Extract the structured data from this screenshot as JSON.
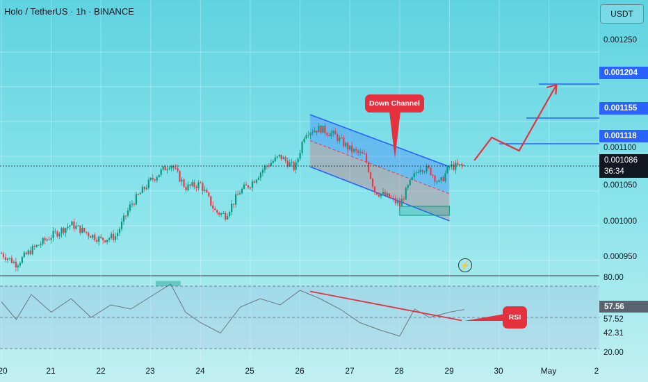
{
  "header": {
    "title": "Holo / TetherUS · 1h · BINANCE"
  },
  "currency": "USDT",
  "price_axis": {
    "labels": [
      "0.001250",
      "0.001100",
      "0.001050",
      "0.001000",
      "0.000950"
    ]
  },
  "levels": [
    "0.001204",
    "0.001155",
    "0.001118"
  ],
  "current": {
    "price": "0.001086",
    "countdown": "36:34"
  },
  "annotations": {
    "channel": "Down Channel",
    "rsi": "RSI"
  },
  "rsi_axis": {
    "labels": [
      "80.00",
      "57.52",
      "42.31",
      "20.00"
    ],
    "current": "57.56"
  },
  "colors": {
    "up": "#089981",
    "down": "#f23645",
    "level": "#2962ff",
    "arrow": "#e5303e"
  },
  "chart_data": {
    "type": "candlestick",
    "title": "Holo / TetherUS · 1h · BINANCE",
    "x_ticks": [
      "20",
      "21",
      "22",
      "23",
      "24",
      "25",
      "26",
      "27",
      "28",
      "29",
      "30",
      "May",
      "2"
    ],
    "price_ticks": [
      0.00125,
      0.0011,
      0.00105,
      0.001,
      0.00095
    ],
    "y_range": [
      0.00093,
      0.00132
    ],
    "close_path": [
      {
        "day": 20.0,
        "price": 0.00096
      },
      {
        "day": 20.3,
        "price": 0.000945
      },
      {
        "day": 20.6,
        "price": 0.000965
      },
      {
        "day": 21.0,
        "price": 0.000985
      },
      {
        "day": 21.4,
        "price": 0.001002
      },
      {
        "day": 21.7,
        "price": 0.00099
      },
      {
        "day": 22.0,
        "price": 0.00098
      },
      {
        "day": 22.3,
        "price": 0.000985
      },
      {
        "day": 22.6,
        "price": 0.00103
      },
      {
        "day": 23.0,
        "price": 0.001065
      },
      {
        "day": 23.4,
        "price": 0.00109
      },
      {
        "day": 23.7,
        "price": 0.001055
      },
      {
        "day": 24.0,
        "price": 0.00106
      },
      {
        "day": 24.3,
        "price": 0.00102
      },
      {
        "day": 24.5,
        "price": 0.001015
      },
      {
        "day": 24.8,
        "price": 0.00105
      },
      {
        "day": 25.0,
        "price": 0.00106
      },
      {
        "day": 25.3,
        "price": 0.001085
      },
      {
        "day": 25.6,
        "price": 0.0011
      },
      {
        "day": 25.9,
        "price": 0.001082
      },
      {
        "day": 26.1,
        "price": 0.001135
      },
      {
        "day": 26.4,
        "price": 0.00114
      },
      {
        "day": 26.7,
        "price": 0.00113
      },
      {
        "day": 27.0,
        "price": 0.00111
      },
      {
        "day": 27.3,
        "price": 0.0011
      },
      {
        "day": 27.5,
        "price": 0.00105
      },
      {
        "day": 27.8,
        "price": 0.00104
      },
      {
        "day": 28.0,
        "price": 0.00103
      },
      {
        "day": 28.2,
        "price": 0.00106
      },
      {
        "day": 28.4,
        "price": 0.001085
      },
      {
        "day": 28.6,
        "price": 0.00108
      },
      {
        "day": 28.8,
        "price": 0.00106
      },
      {
        "day": 29.0,
        "price": 0.001085
      },
      {
        "day": 29.3,
        "price": 0.001086
      }
    ],
    "channel": {
      "label": "Down Channel",
      "start_day": 26.2,
      "end_day": 29.0,
      "upper": [
        0.00116,
        0.001085
      ],
      "lower": [
        0.001085,
        0.001007
      ]
    },
    "support_zone": {
      "start_day": 28.0,
      "end_day": 29.0,
      "low": 0.001015,
      "high": 0.001028
    },
    "horizontal_levels": [
      0.001204,
      0.001155,
      0.001118
    ],
    "projection_path": [
      {
        "day": 29.5,
        "price": 0.001094
      },
      {
        "day": 29.85,
        "price": 0.001127
      },
      {
        "day": 30.4,
        "price": 0.001108
      },
      {
        "day": 31.15,
        "price": 0.001203
      }
    ],
    "rsi": {
      "ticks": [
        80.0,
        57.52,
        42.31,
        20.0
      ],
      "current": 57.56,
      "path": [
        {
          "day": 20.0,
          "value": 65
        },
        {
          "day": 20.3,
          "value": 48
        },
        {
          "day": 20.6,
          "value": 72
        },
        {
          "day": 21.0,
          "value": 55
        },
        {
          "day": 21.4,
          "value": 68
        },
        {
          "day": 21.8,
          "value": 50
        },
        {
          "day": 22.2,
          "value": 62
        },
        {
          "day": 22.6,
          "value": 58
        },
        {
          "day": 23.0,
          "value": 70
        },
        {
          "day": 23.4,
          "value": 82
        },
        {
          "day": 23.7,
          "value": 55
        },
        {
          "day": 24.0,
          "value": 45
        },
        {
          "day": 24.4,
          "value": 35
        },
        {
          "day": 24.8,
          "value": 60
        },
        {
          "day": 25.2,
          "value": 68
        },
        {
          "day": 25.6,
          "value": 62
        },
        {
          "day": 26.0,
          "value": 76
        },
        {
          "day": 26.4,
          "value": 68
        },
        {
          "day": 26.8,
          "value": 58
        },
        {
          "day": 27.2,
          "value": 45
        },
        {
          "day": 27.6,
          "value": 38
        },
        {
          "day": 28.0,
          "value": 32
        },
        {
          "day": 28.3,
          "value": 58
        },
        {
          "day": 28.6,
          "value": 50
        },
        {
          "day": 29.0,
          "value": 55
        },
        {
          "day": 29.3,
          "value": 57.56
        }
      ],
      "trendline": [
        {
          "day": 26.2,
          "value": 75
        },
        {
          "day": 29.25,
          "value": 47
        }
      ]
    }
  }
}
